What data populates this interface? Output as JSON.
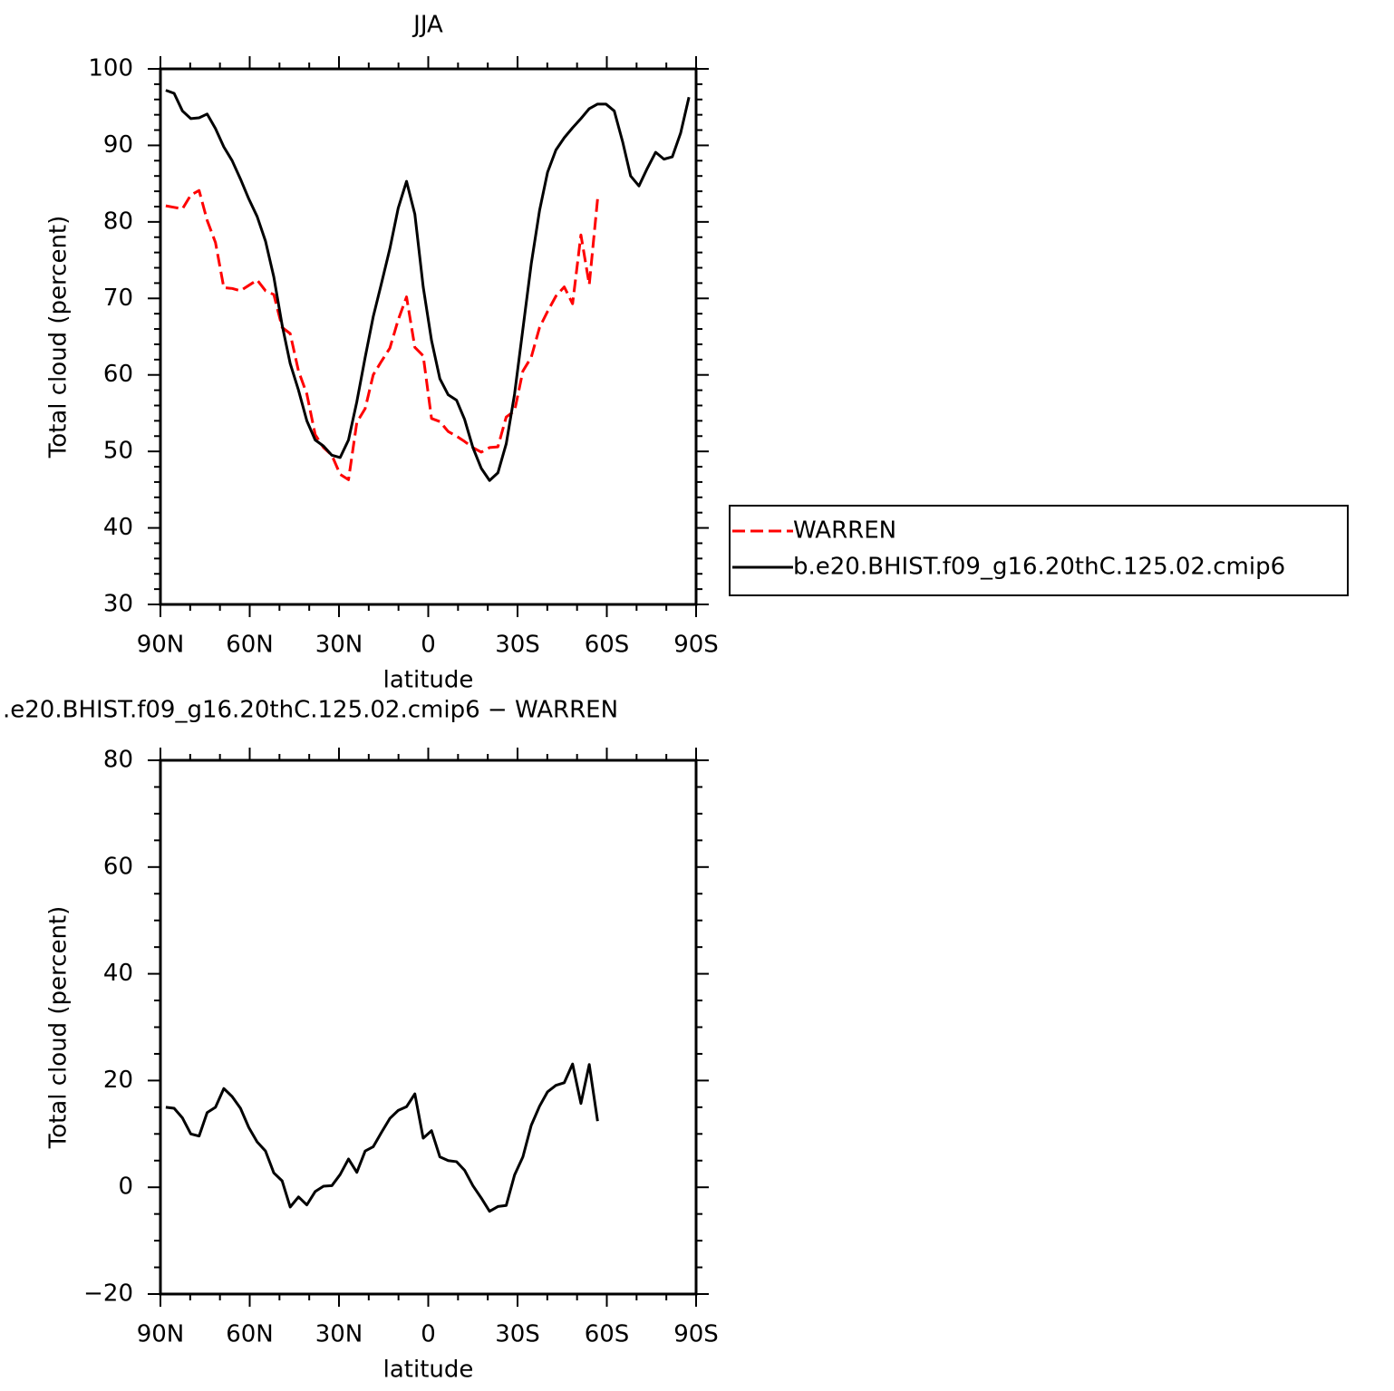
{
  "chart_data": [
    {
      "type": "line",
      "title": "JJA",
      "xlabel": "latitude",
      "ylabel": "Total cloud (percent)",
      "x": [
        88.2,
        85.4,
        82.6,
        79.8,
        77.0,
        74.3,
        71.5,
        68.7,
        65.9,
        63.1,
        60.3,
        57.5,
        54.7,
        51.9,
        49.1,
        46.4,
        43.6,
        40.8,
        38.0,
        35.2,
        32.4,
        29.6,
        26.8,
        24.0,
        21.2,
        18.5,
        15.7,
        12.9,
        10.1,
        7.3,
        4.5,
        1.7,
        -1.1,
        -3.9,
        -6.7,
        -9.5,
        -12.2,
        -15.0,
        -17.8,
        -20.6,
        -23.4,
        -26.2,
        -29.0,
        -31.8,
        -34.6,
        -37.4,
        -40.1,
        -42.9,
        -45.7,
        -48.5,
        -51.3,
        -54.1,
        -56.9,
        -59.7,
        -62.5,
        -65.3,
        -68.0,
        -70.8,
        -73.6,
        -76.4,
        -79.2,
        -82.0,
        -84.8,
        -87.6
      ],
      "series": [
        {
          "name": "WARREN",
          "color": "#ff0000",
          "linestyle": "dashed",
          "values": [
            82.1,
            81.9,
            81.7,
            83.5,
            84.1,
            80.2,
            77.3,
            71.4,
            71.3,
            71.0,
            71.7,
            72.4,
            71.0,
            70.5,
            66.2,
            65.4,
            60.5,
            57.5,
            52.2,
            50.5,
            49.5,
            47.0,
            46.3,
            53.8,
            55.6,
            60.0,
            61.8,
            63.5,
            67.2,
            70.2,
            63.6,
            62.5,
            54.3,
            53.9,
            52.6,
            52.0,
            51.3,
            50.5,
            49.9,
            50.5,
            50.6,
            54.5,
            55.3,
            60.5,
            62.3,
            66.2,
            68.3,
            70.3,
            71.5,
            69.3,
            78.3,
            71.8,
            83.0,
            null,
            null,
            null,
            null,
            null,
            null,
            null,
            null,
            null,
            null,
            null
          ]
        },
        {
          "name": "b.e20.BHIST.f09_g16.20thC.125.02.cmip6",
          "color": "#000000",
          "linestyle": "solid",
          "values": [
            97.2,
            96.8,
            94.5,
            93.5,
            93.6,
            94.1,
            92.2,
            89.8,
            88.0,
            85.6,
            83.0,
            80.7,
            77.5,
            72.8,
            66.5,
            61.5,
            58.0,
            54.0,
            51.5,
            50.7,
            49.5,
            49.2,
            51.5,
            56.5,
            62.3,
            67.6,
            72.0,
            76.5,
            81.8,
            85.3,
            81.0,
            71.5,
            64.5,
            59.5,
            57.4,
            56.7,
            54.2,
            50.5,
            47.8,
            46.2,
            47.2,
            51.0,
            57.5,
            66.0,
            74.5,
            81.5,
            86.5,
            89.4,
            91.0,
            92.3,
            93.5,
            94.8,
            95.4,
            95.4,
            94.5,
            90.5,
            86.0,
            84.7,
            87.0,
            89.1,
            88.2,
            88.5,
            91.6,
            96.3
          ]
        }
      ],
      "xlim": [
        90,
        -90
      ],
      "xticks": [
        {
          "value": 90,
          "label": "90N"
        },
        {
          "value": 60,
          "label": "60N"
        },
        {
          "value": 30,
          "label": "30N"
        },
        0,
        {
          "value": -30,
          "label": "30S"
        },
        {
          "value": -60,
          "label": "60S"
        },
        {
          "value": -90,
          "label": "90S"
        }
      ],
      "xminorticks": [
        80,
        70,
        50,
        40,
        20,
        10,
        -10,
        -20,
        -40,
        -50,
        -70,
        -80
      ],
      "ylim": [
        30,
        100
      ],
      "yticks": [
        30,
        40,
        50,
        60,
        70,
        80,
        90,
        100
      ],
      "yminorticks": [
        32,
        34,
        36,
        38,
        42,
        44,
        46,
        48,
        52,
        54,
        56,
        58,
        62,
        64,
        66,
        68,
        72,
        74,
        76,
        78,
        82,
        84,
        86,
        88,
        92,
        94,
        96,
        98
      ],
      "legend": "right"
    },
    {
      "type": "line",
      "title": ".e20.BHIST.f09_g16.20thC.125.02.cmip6 − WARREN",
      "xlabel": "latitude",
      "ylabel": "Total cloud (percent)",
      "x": [
        88.2,
        85.4,
        82.6,
        79.8,
        77.0,
        74.3,
        71.5,
        68.7,
        65.9,
        63.1,
        60.3,
        57.5,
        54.7,
        51.9,
        49.1,
        46.4,
        43.6,
        40.8,
        38.0,
        35.2,
        32.4,
        29.6,
        26.8,
        24.0,
        21.2,
        18.5,
        15.7,
        12.9,
        10.1,
        7.3,
        4.5,
        1.7,
        -1.1,
        -3.9,
        -6.7,
        -9.5,
        -12.2,
        -15.0,
        -17.8,
        -20.6,
        -23.4,
        -26.2,
        -29.0,
        -31.8,
        -34.6,
        -37.4,
        -40.1,
        -42.9,
        -45.7,
        -48.5,
        -51.3,
        -54.1,
        -56.9
      ],
      "values": [
        15.0,
        14.8,
        13.0,
        10.0,
        9.6,
        14.0,
        15.0,
        18.5,
        17.0,
        14.8,
        11.2,
        8.5,
        6.8,
        2.7,
        1.2,
        -3.7,
        -1.8,
        -3.3,
        -0.8,
        0.2,
        0.3,
        2.4,
        5.3,
        2.8,
        6.8,
        7.6,
        10.3,
        12.9,
        14.4,
        15.1,
        17.5,
        9.2,
        10.6,
        5.7,
        5.0,
        4.8,
        3.2,
        0.3,
        -2.0,
        -4.5,
        -3.6,
        -3.4,
        2.3,
        5.7,
        11.6,
        15.2,
        17.9,
        19.1,
        19.6,
        23.1,
        15.7,
        23.0,
        12.4
      ],
      "color": "#000000",
      "xlim": [
        90,
        -90
      ],
      "xticks": [
        {
          "value": 90,
          "label": "90N"
        },
        {
          "value": 60,
          "label": "60N"
        },
        {
          "value": 30,
          "label": "30N"
        },
        0,
        {
          "value": -30,
          "label": "30S"
        },
        {
          "value": -60,
          "label": "60S"
        },
        {
          "value": -90,
          "label": "90S"
        }
      ],
      "xminorticks": [
        80,
        70,
        50,
        40,
        20,
        10,
        -10,
        -20,
        -40,
        -50,
        -70,
        -80
      ],
      "ylim": [
        -20,
        80
      ],
      "yticks": [
        {
          "value": -20,
          "label": "−20"
        },
        0,
        20,
        40,
        60,
        80
      ],
      "yminorticks": [
        -15,
        -10,
        -5,
        5,
        10,
        15,
        25,
        30,
        35,
        45,
        50,
        55,
        65,
        70,
        75
      ]
    }
  ]
}
